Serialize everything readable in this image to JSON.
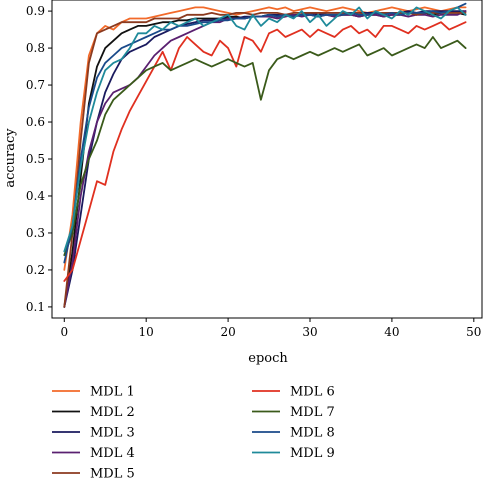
{
  "chart_data": {
    "type": "line",
    "xlabel": "epoch",
    "ylabel": "accuracy",
    "xlim": [
      -1.5,
      51
    ],
    "ylim": [
      0.07,
      0.93
    ],
    "xticks": [
      0,
      10,
      20,
      30,
      40,
      50
    ],
    "yticks": [
      0.1,
      0.2,
      0.3,
      0.4,
      0.5,
      0.6,
      0.7,
      0.8,
      0.9
    ],
    "grid": false,
    "legend_position": "bottom",
    "x": [
      0,
      1,
      2,
      3,
      4,
      5,
      6,
      7,
      8,
      9,
      10,
      11,
      12,
      13,
      14,
      15,
      16,
      17,
      18,
      19,
      20,
      21,
      22,
      23,
      24,
      25,
      26,
      27,
      28,
      29,
      30,
      31,
      32,
      33,
      34,
      35,
      36,
      37,
      38,
      39,
      40,
      41,
      42,
      43,
      44,
      45,
      46,
      47,
      48,
      49
    ],
    "series": [
      {
        "name": "MDL 1",
        "color": "#f26a2a",
        "values": [
          0.2,
          0.35,
          0.6,
          0.78,
          0.84,
          0.86,
          0.85,
          0.87,
          0.88,
          0.88,
          0.88,
          0.885,
          0.89,
          0.895,
          0.9,
          0.905,
          0.91,
          0.91,
          0.905,
          0.9,
          0.895,
          0.89,
          0.895,
          0.9,
          0.905,
          0.91,
          0.905,
          0.91,
          0.9,
          0.905,
          0.91,
          0.905,
          0.9,
          0.905,
          0.91,
          0.905,
          0.9,
          0.895,
          0.9,
          0.905,
          0.91,
          0.905,
          0.9,
          0.905,
          0.91,
          0.905,
          0.9,
          0.905,
          0.91,
          0.91
        ]
      },
      {
        "name": "MDL 2",
        "color": "#111111",
        "values": [
          0.1,
          0.25,
          0.45,
          0.65,
          0.75,
          0.8,
          0.82,
          0.84,
          0.85,
          0.86,
          0.86,
          0.865,
          0.87,
          0.87,
          0.875,
          0.875,
          0.88,
          0.88,
          0.88,
          0.88,
          0.885,
          0.885,
          0.88,
          0.885,
          0.885,
          0.89,
          0.885,
          0.89,
          0.885,
          0.89,
          0.89,
          0.885,
          0.89,
          0.885,
          0.89,
          0.89,
          0.885,
          0.89,
          0.89,
          0.885,
          0.89,
          0.89,
          0.895,
          0.89,
          0.895,
          0.89,
          0.895,
          0.895,
          0.895,
          0.89
        ]
      },
      {
        "name": "MDL 3",
        "color": "#1a1a5e",
        "values": [
          0.1,
          0.2,
          0.35,
          0.5,
          0.6,
          0.68,
          0.73,
          0.77,
          0.79,
          0.8,
          0.81,
          0.83,
          0.84,
          0.85,
          0.86,
          0.865,
          0.87,
          0.875,
          0.875,
          0.88,
          0.88,
          0.88,
          0.885,
          0.885,
          0.885,
          0.89,
          0.89,
          0.89,
          0.89,
          0.89,
          0.895,
          0.89,
          0.895,
          0.895,
          0.895,
          0.895,
          0.895,
          0.895,
          0.895,
          0.895,
          0.895,
          0.895,
          0.9,
          0.895,
          0.9,
          0.9,
          0.9,
          0.9,
          0.9,
          0.9
        ]
      },
      {
        "name": "MDL 4",
        "color": "#5a2070",
        "values": [
          0.1,
          0.22,
          0.4,
          0.52,
          0.6,
          0.65,
          0.68,
          0.69,
          0.7,
          0.72,
          0.75,
          0.78,
          0.8,
          0.82,
          0.83,
          0.84,
          0.85,
          0.86,
          0.87,
          0.87,
          0.88,
          0.88,
          0.88,
          0.885,
          0.885,
          0.885,
          0.88,
          0.885,
          0.89,
          0.885,
          0.89,
          0.885,
          0.89,
          0.885,
          0.89,
          0.89,
          0.885,
          0.89,
          0.89,
          0.885,
          0.89,
          0.89,
          0.885,
          0.89,
          0.89,
          0.885,
          0.89,
          0.89,
          0.89,
          0.9
        ]
      },
      {
        "name": "MDL 5",
        "color": "#8b3a1f",
        "values": [
          0.1,
          0.3,
          0.55,
          0.76,
          0.84,
          0.85,
          0.86,
          0.87,
          0.87,
          0.87,
          0.87,
          0.88,
          0.88,
          0.88,
          0.88,
          0.89,
          0.89,
          0.89,
          0.895,
          0.89,
          0.89,
          0.895,
          0.895,
          0.89,
          0.895,
          0.895,
          0.895,
          0.89,
          0.895,
          0.895,
          0.895,
          0.895,
          0.895,
          0.895,
          0.895,
          0.895,
          0.895,
          0.89,
          0.895,
          0.895,
          0.895,
          0.895,
          0.895,
          0.89,
          0.895,
          0.895,
          0.895,
          0.895,
          0.895,
          0.895
        ]
      },
      {
        "name": "MDL 6",
        "color": "#e03020",
        "values": [
          0.17,
          0.2,
          0.28,
          0.36,
          0.44,
          0.43,
          0.52,
          0.58,
          0.63,
          0.67,
          0.71,
          0.75,
          0.79,
          0.74,
          0.8,
          0.83,
          0.81,
          0.79,
          0.78,
          0.82,
          0.8,
          0.75,
          0.83,
          0.82,
          0.79,
          0.84,
          0.85,
          0.83,
          0.84,
          0.85,
          0.83,
          0.85,
          0.84,
          0.83,
          0.85,
          0.86,
          0.84,
          0.85,
          0.83,
          0.86,
          0.86,
          0.85,
          0.84,
          0.86,
          0.85,
          0.86,
          0.87,
          0.85,
          0.86,
          0.87
        ]
      },
      {
        "name": "MDL 7",
        "color": "#3a5a1a",
        "values": [
          0.24,
          0.3,
          0.43,
          0.5,
          0.55,
          0.62,
          0.66,
          0.68,
          0.7,
          0.72,
          0.74,
          0.75,
          0.76,
          0.74,
          0.75,
          0.76,
          0.77,
          0.76,
          0.75,
          0.76,
          0.77,
          0.76,
          0.75,
          0.76,
          0.66,
          0.74,
          0.77,
          0.78,
          0.77,
          0.78,
          0.79,
          0.78,
          0.79,
          0.8,
          0.79,
          0.8,
          0.81,
          0.78,
          0.79,
          0.8,
          0.78,
          0.79,
          0.8,
          0.81,
          0.8,
          0.83,
          0.8,
          0.81,
          0.82,
          0.8
        ]
      },
      {
        "name": "MDL 8",
        "color": "#1a4a8a",
        "values": [
          0.22,
          0.32,
          0.5,
          0.64,
          0.72,
          0.76,
          0.78,
          0.8,
          0.81,
          0.82,
          0.83,
          0.84,
          0.85,
          0.85,
          0.86,
          0.86,
          0.865,
          0.87,
          0.87,
          0.875,
          0.875,
          0.88,
          0.88,
          0.885,
          0.885,
          0.89,
          0.885,
          0.89,
          0.885,
          0.89,
          0.89,
          0.885,
          0.89,
          0.89,
          0.89,
          0.895,
          0.89,
          0.89,
          0.895,
          0.89,
          0.895,
          0.89,
          0.895,
          0.895,
          0.895,
          0.9,
          0.895,
          0.9,
          0.91,
          0.92
        ]
      },
      {
        "name": "MDL 9",
        "color": "#1f8a9a",
        "values": [
          0.25,
          0.32,
          0.48,
          0.6,
          0.68,
          0.74,
          0.76,
          0.77,
          0.8,
          0.84,
          0.84,
          0.86,
          0.85,
          0.87,
          0.86,
          0.87,
          0.88,
          0.86,
          0.87,
          0.88,
          0.89,
          0.86,
          0.85,
          0.89,
          0.86,
          0.88,
          0.87,
          0.89,
          0.88,
          0.9,
          0.87,
          0.89,
          0.86,
          0.88,
          0.9,
          0.89,
          0.91,
          0.88,
          0.9,
          0.89,
          0.88,
          0.9,
          0.89,
          0.91,
          0.9,
          0.89,
          0.88,
          0.9,
          0.91,
          0.89
        ]
      }
    ]
  }
}
